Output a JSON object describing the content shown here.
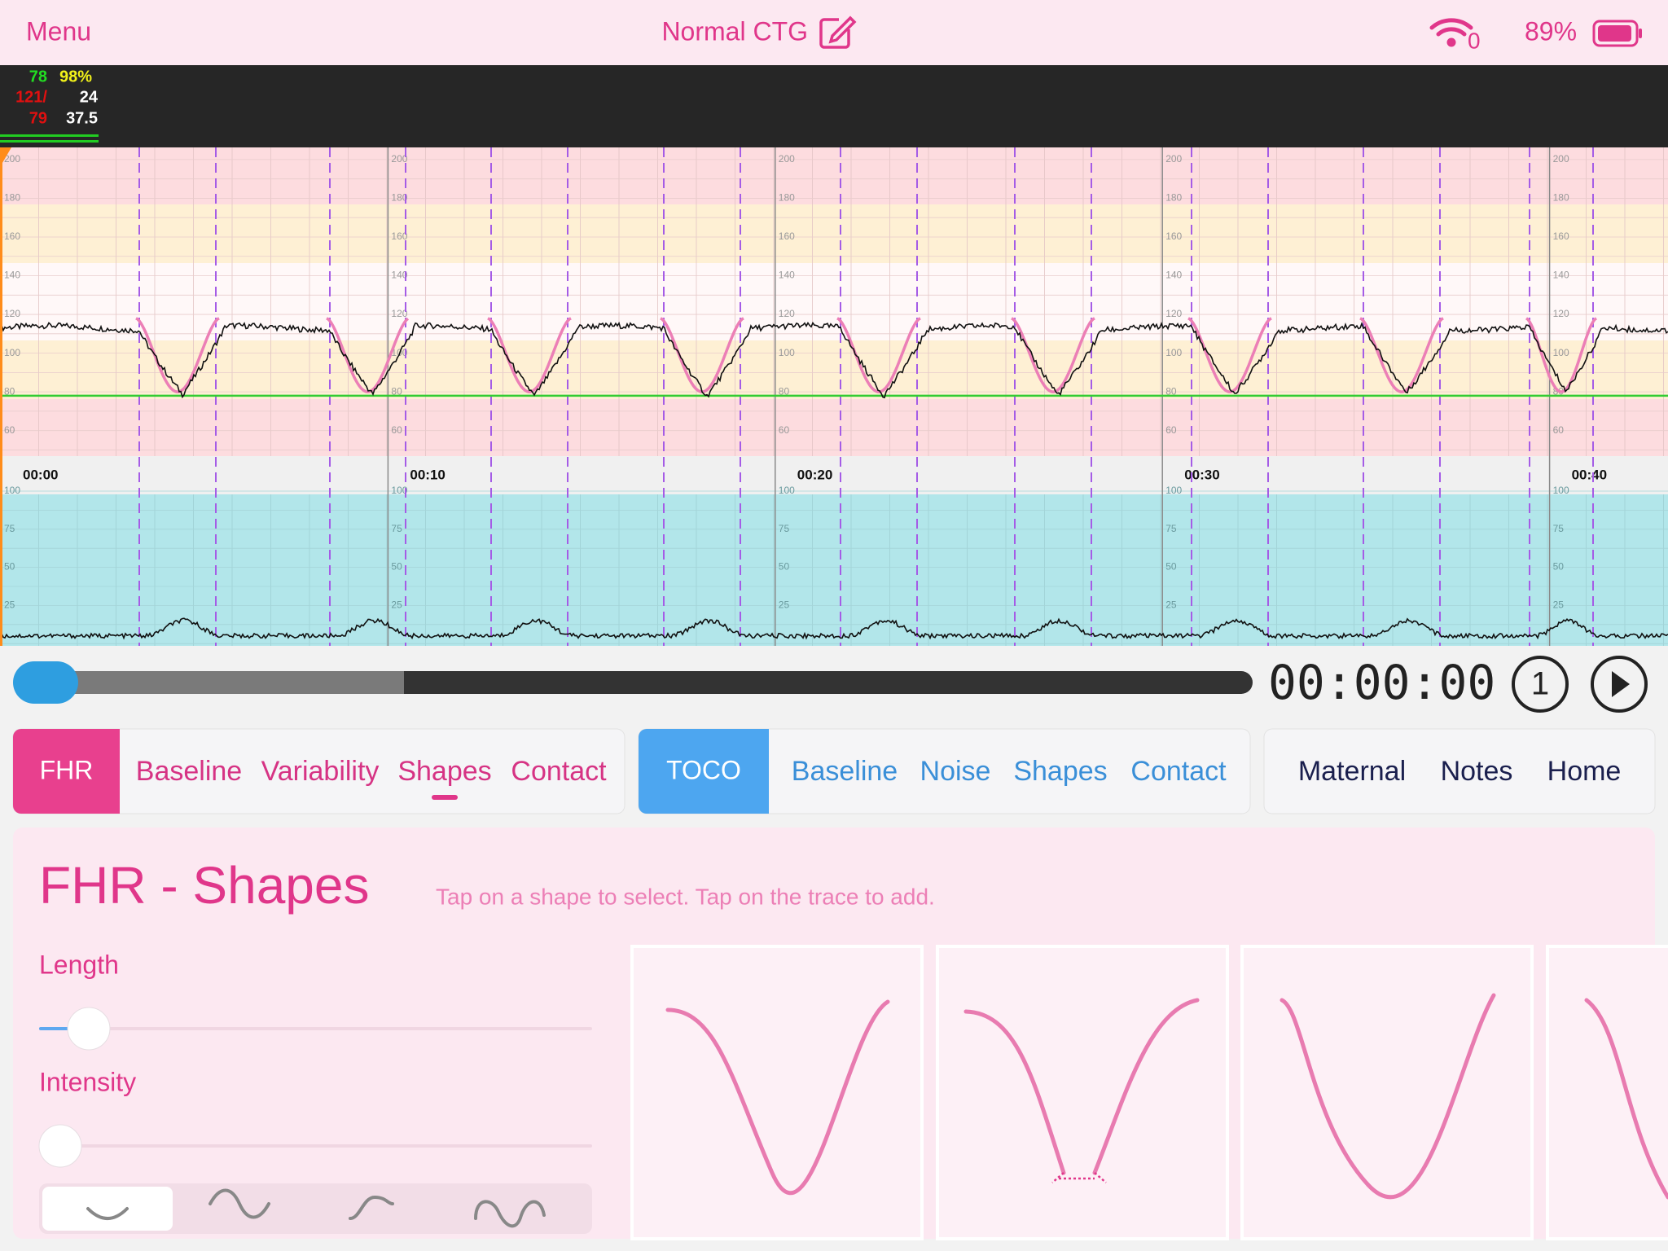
{
  "status_bar": {
    "menu": "Menu",
    "title": "Normal CTG",
    "wifi": "0",
    "battery": "89%"
  },
  "vitals": {
    "heart_rate": "78",
    "spo2": "98%",
    "bp_systolic": "121/",
    "resp": "24",
    "bp_diastolic": "79",
    "temp": "37.5"
  },
  "fhr_scale": [
    200,
    180,
    160,
    140,
    120,
    100,
    80,
    60
  ],
  "time_labels": [
    "00:00",
    "00:10",
    "00:20",
    "00:30",
    "00:40"
  ],
  "toco_scale": [
    100,
    75,
    50,
    25
  ],
  "player": {
    "time": "00:00:00",
    "speed": "1"
  },
  "tabs": {
    "fhr": {
      "label": "FHR",
      "items": [
        "Baseline",
        "Variability",
        "Shapes",
        "Contact"
      ]
    },
    "toco": {
      "label": "TOCO",
      "items": [
        "Baseline",
        "Noise",
        "Shapes",
        "Contact"
      ]
    },
    "other": [
      "Maternal",
      "Notes",
      "Home"
    ]
  },
  "panel": {
    "title": "FHR - Shapes",
    "hint": "Tap on a shape to select. Tap on the trace to add.",
    "length": "Length",
    "intensity": "Intensity"
  }
}
